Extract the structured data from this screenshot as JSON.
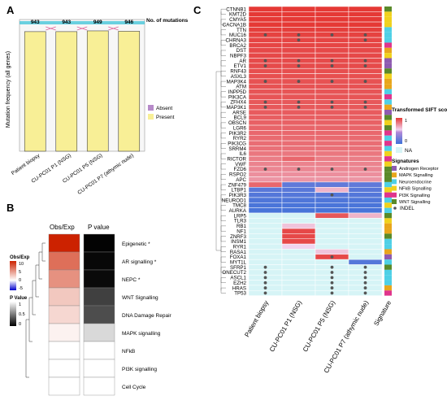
{
  "panels": {
    "a": "A",
    "b": "B",
    "c": "C"
  },
  "chart_data": [
    {
      "type": "bar",
      "panel": "A",
      "categories": [
        "Patient biopsy",
        "CU-PC01 P1 (NSG)",
        "CU-PC01 P5 (NSG)",
        "CU-PC01 P7 (athymic nude)"
      ],
      "series": [
        {
          "name": "Absent",
          "values": [
            0,
            0,
            0,
            0
          ]
        },
        {
          "name": "Present",
          "values": [
            943,
            943,
            949,
            946
          ]
        }
      ],
      "top_labels": [
        "943",
        "943",
        "949",
        "946"
      ],
      "top_label_title": "No. of mutations",
      "ylabel": "Mutation frequency (all genes)",
      "legend_title": "",
      "legend": [
        "Absent",
        "Present"
      ],
      "colors": {
        "Absent": "#b78bc9",
        "Present": "#f8ef96",
        "outline": "#444444",
        "band": "#46c6d8"
      }
    },
    {
      "type": "heatmap",
      "panel": "B",
      "columns": [
        "Obs/Exp",
        "P value"
      ],
      "rows": [
        "Epigenetic *",
        "AR signalling *",
        "NEPC *",
        "WNT Signalling",
        "DNA Damage Repair",
        "MAPK signalling",
        "NFkB",
        "PI3K signalling",
        "Cell Cycle"
      ],
      "obs_exp": [
        10,
        6.5,
        5,
        2.5,
        1.8,
        0.6,
        0,
        0,
        0
      ],
      "p_value": [
        0.01,
        0.03,
        0.04,
        0.25,
        0.3,
        0.85,
        1,
        1,
        1
      ],
      "legend_obs_title": "Obs/Exp",
      "legend_obs_ticks": [
        "10",
        "5",
        "0",
        "-5"
      ],
      "legend_p_title": "P Value",
      "legend_p_ticks": [
        "1",
        "0.5",
        "0"
      ]
    },
    {
      "type": "heatmap",
      "panel": "C",
      "columns": [
        "Patient biopsy",
        "CU-PC01 P1 (NSG)",
        "CU-PC01 P5 (NSG)",
        "CU-PC01 P7 (athymic nude)",
        "Signature"
      ],
      "genes": [
        "CTNNB1",
        "KMT2D",
        "CMYA5",
        "CACNA1B",
        "TTN",
        "MUC16",
        "CHRNA3",
        "BRCA2",
        "DST",
        "NBPF3",
        "AR",
        "ETV1",
        "RNF43",
        "ASXL3",
        "MAP3K4",
        "ATM",
        "INPP5D",
        "PIK3CA",
        "ZFHX4",
        "MAP3K1",
        "ARSE",
        "BCL9",
        "OBSCN",
        "LGR6",
        "PIK3R2",
        "RYR2",
        "PIK3CG",
        "SRRM4",
        "IL6",
        "RICTOR",
        "VWF",
        "FZD6",
        "RSPO2",
        "APC",
        "ZNF479",
        "LTBP1",
        "PIK3R3",
        "NEUROD1",
        "TMC8",
        "AURKA",
        "LRP5",
        "TLR3",
        "RB1",
        "NF1",
        "ZNRF3",
        "INSM1",
        "RYR1",
        "RASA1",
        "FOXA1",
        "MYT1L",
        "SFRP1",
        "ONECUT2",
        "ASCL1",
        "EZH2",
        "HRAS",
        "TP53"
      ],
      "sift": [
        [
          1.0,
          1.0,
          1.0,
          1.0
        ],
        [
          1.0,
          1.0,
          1.0,
          1.0
        ],
        [
          1.0,
          1.0,
          1.0,
          1.0
        ],
        [
          1.0,
          1.0,
          1.0,
          1.0
        ],
        [
          0.98,
          0.98,
          0.98,
          0.98
        ],
        [
          0.97,
          0.97,
          0.97,
          0.97
        ],
        [
          0.96,
          0.96,
          0.96,
          0.96
        ],
        [
          0.96,
          0.96,
          0.96,
          0.96
        ],
        [
          0.95,
          0.95,
          0.95,
          0.95
        ],
        [
          0.95,
          0.95,
          0.95,
          0.95
        ],
        [
          0.94,
          0.94,
          0.94,
          0.94
        ],
        [
          0.94,
          0.94,
          0.94,
          0.94
        ],
        [
          0.93,
          0.93,
          0.93,
          0.93
        ],
        [
          0.93,
          0.93,
          0.93,
          0.93
        ],
        [
          0.92,
          0.92,
          0.92,
          0.92
        ],
        [
          0.92,
          0.92,
          0.92,
          0.92
        ],
        [
          0.91,
          0.91,
          0.91,
          0.91
        ],
        [
          0.91,
          0.91,
          0.91,
          0.91
        ],
        [
          0.9,
          0.9,
          0.9,
          0.9
        ],
        [
          0.9,
          0.9,
          0.9,
          0.9
        ],
        [
          0.89,
          0.89,
          0.89,
          0.89
        ],
        [
          0.88,
          0.88,
          0.88,
          0.88
        ],
        [
          0.87,
          0.87,
          0.87,
          0.87
        ],
        [
          0.86,
          0.86,
          0.86,
          0.86
        ],
        [
          0.85,
          0.85,
          0.85,
          0.85
        ],
        [
          0.84,
          0.84,
          0.84,
          0.84
        ],
        [
          0.83,
          0.83,
          0.83,
          0.83
        ],
        [
          0.82,
          0.82,
          0.82,
          0.82
        ],
        [
          0.8,
          0.8,
          0.8,
          0.8
        ],
        [
          0.78,
          0.85,
          0.78,
          0.78
        ],
        [
          0.76,
          0.76,
          0.76,
          0.76
        ],
        [
          0.75,
          0.75,
          0.75,
          0.75
        ],
        [
          0.72,
          0.72,
          0.72,
          0.72
        ],
        [
          0.7,
          0.7,
          0.7,
          0.7
        ],
        [
          0.85,
          0.15,
          0.15,
          0.15
        ],
        [
          0.12,
          0.12,
          0.6,
          0.12
        ],
        [
          0.1,
          0.1,
          0.1,
          0.1
        ],
        [
          0.08,
          0.08,
          0.08,
          0.08
        ],
        [
          0.06,
          0.06,
          0.06,
          0.06
        ],
        [
          0.05,
          0.05,
          0.05,
          0.05
        ],
        [
          null,
          null,
          0.9,
          0.6
        ],
        [
          null,
          null,
          null,
          null
        ],
        [
          null,
          0.55,
          null,
          null
        ],
        [
          null,
          0.95,
          null,
          null
        ],
        [
          null,
          0.95,
          null,
          null
        ],
        [
          null,
          0.95,
          null,
          null
        ],
        [
          null,
          0.5,
          null,
          null
        ],
        [
          null,
          null,
          0.55,
          null
        ],
        [
          null,
          null,
          0.95,
          null
        ],
        [
          null,
          null,
          null,
          0.1
        ],
        [
          null,
          null,
          null,
          null
        ],
        [
          null,
          null,
          null,
          null
        ],
        [
          null,
          null,
          null,
          null
        ],
        [
          null,
          null,
          null,
          null
        ],
        [
          null,
          null,
          null,
          null
        ],
        [
          null,
          null,
          null,
          null
        ]
      ],
      "indel": [
        [],
        [],
        [],
        [],
        [],
        [
          0,
          1,
          2,
          3
        ],
        [
          1,
          3
        ],
        [],
        [],
        [],
        [
          0,
          1,
          2,
          3
        ],
        [
          0,
          1,
          2,
          3
        ],
        [],
        [],
        [
          0,
          1,
          2,
          3
        ],
        [],
        [],
        [],
        [
          0,
          1,
          2,
          3
        ],
        [
          0,
          1,
          2,
          3
        ],
        [],
        [],
        [],
        [],
        [],
        [],
        [],
        [],
        [],
        [],
        [],
        [
          0,
          1,
          2,
          3
        ],
        [],
        [],
        [],
        [],
        [
          2
        ],
        [],
        [],
        [],
        [],
        [],
        [],
        [],
        [],
        [],
        [],
        [],
        [
          2
        ],
        [],
        [
          0,
          2,
          3
        ],
        [
          0,
          2,
          3
        ],
        [
          0,
          2,
          3
        ],
        [
          0,
          2,
          3
        ],
        [
          0,
          2,
          3
        ],
        [
          0,
          2,
          3
        ]
      ],
      "signature": [
        "WNT Signalling",
        "NFkB Signalling",
        "NFkB Signalling",
        "NFkB Signalling",
        "Neuroendocrine",
        "Neuroendocrine",
        "Neuroendocrine",
        "PI3K Signalling",
        "MAPK Signalling",
        "NFkB Signalling",
        "Androgen Receptor",
        "Androgen Receptor",
        "WNT Signalling",
        "NFkB Signalling",
        "MAPK Signalling",
        "MAPK Signalling",
        "Neuroendocrine",
        "PI3K Signalling",
        "Neuroendocrine",
        "MAPK Signalling",
        "Androgen Receptor",
        "WNT Signalling",
        "NFkB Signalling",
        "WNT Signalling",
        "PI3K Signalling",
        "Neuroendocrine",
        "PI3K Signalling",
        "Neuroendocrine",
        "NFkB Signalling",
        "PI3K Signalling",
        "NFkB Signalling",
        "WNT Signalling",
        "WNT Signalling",
        "WNT Signalling",
        "Neuroendocrine",
        "NFkB Signalling",
        "PI3K Signalling",
        "Neuroendocrine",
        "NFkB Signalling",
        "Neuroendocrine",
        "WNT Signalling",
        "NFkB Signalling",
        "MAPK Signalling",
        "MAPK Signalling",
        "WNT Signalling",
        "Neuroendocrine",
        "Neuroendocrine",
        "MAPK Signalling",
        "Androgen Receptor",
        "Neuroendocrine",
        "WNT Signalling",
        "Neuroendocrine",
        "Neuroendocrine",
        "Neuroendocrine",
        "MAPK Signalling",
        "PI3K Signalling"
      ],
      "legend_sift_title": "Transformed SIFT score",
      "legend_sift_ticks": [
        "1",
        "0"
      ],
      "legend_na": "NA",
      "legend_sig_title": "Signatures",
      "legend_signatures": [
        "Androgen Receptor",
        "MAPK Signalling",
        "Neuroendocrine",
        "NFkB Signalling",
        "PI3K Signalling",
        "WNT Signalling"
      ],
      "legend_indel": "INDEL",
      "signature_colors": {
        "Androgen Receptor": "#8e5bb0",
        "MAPK Signalling": "#e8a61c",
        "Neuroendocrine": "#4fd0e6",
        "NFkB Signalling": "#f0d21e",
        "PI3K Signalling": "#e0358c",
        "WNT Signalling": "#5a8a2a"
      }
    }
  ]
}
